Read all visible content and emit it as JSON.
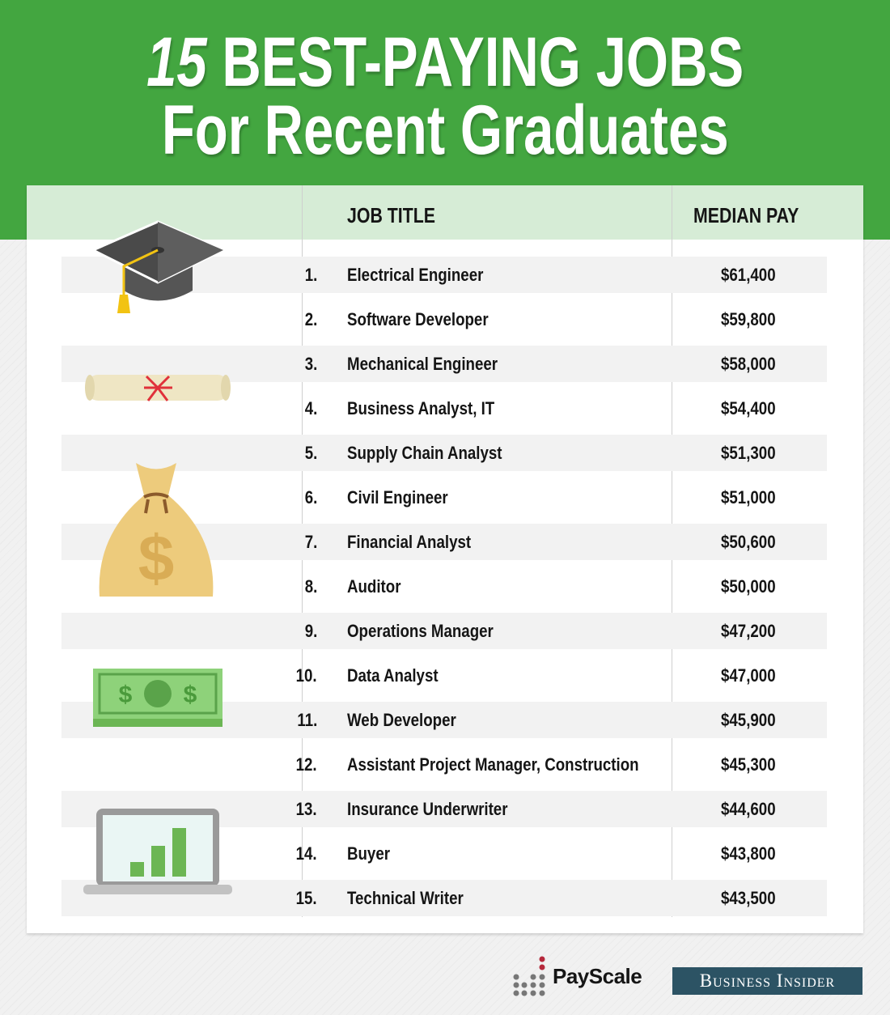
{
  "title": {
    "number": "15",
    "line1": "BEST-PAYING JOBS",
    "line2": "For Recent Graduates"
  },
  "colors": {
    "header_green": "#43a640",
    "table_header": "#d6ecd6",
    "stripe": "#f2f2f2",
    "business_insider": "#2c5364"
  },
  "chart_data": {
    "type": "table",
    "columns": [
      "JOB TITLE",
      "MEDIAN PAY"
    ],
    "rows": [
      {
        "rank": "1.",
        "job": "Electrical Engineer",
        "pay": "$61,400"
      },
      {
        "rank": "2.",
        "job": "Software Developer",
        "pay": "$59,800"
      },
      {
        "rank": "3.",
        "job": "Mechanical Engineer",
        "pay": "$58,000"
      },
      {
        "rank": "4.",
        "job": "Business Analyst, IT",
        "pay": "$54,400"
      },
      {
        "rank": "5.",
        "job": "Supply Chain Analyst",
        "pay": "$51,300"
      },
      {
        "rank": "6.",
        "job": "Civil Engineer",
        "pay": "$51,000"
      },
      {
        "rank": "7.",
        "job": "Financial Analyst",
        "pay": "$50,600"
      },
      {
        "rank": "8.",
        "job": "Auditor",
        "pay": "$50,000"
      },
      {
        "rank": "9.",
        "job": "Operations Manager",
        "pay": "$47,200"
      },
      {
        "rank": "10.",
        "job": "Data Analyst",
        "pay": "$47,000"
      },
      {
        "rank": "11.",
        "job": "Web Developer",
        "pay": "$45,900"
      },
      {
        "rank": "12.",
        "job": "Assistant Project Manager, Construction",
        "pay": "$45,300"
      },
      {
        "rank": "13.",
        "job": "Insurance Underwriter",
        "pay": "$44,600"
      },
      {
        "rank": "14.",
        "job": "Buyer",
        "pay": "$43,800"
      },
      {
        "rank": "15.",
        "job": "Technical Writer",
        "pay": "$43,500"
      }
    ]
  },
  "icons": [
    "graduation-cap-icon",
    "diploma-icon",
    "money-bag-icon",
    "dollar-bill-icon",
    "laptop-chart-icon"
  ],
  "footer": {
    "payscale": "PayScale",
    "business_insider": "Business Insider"
  }
}
